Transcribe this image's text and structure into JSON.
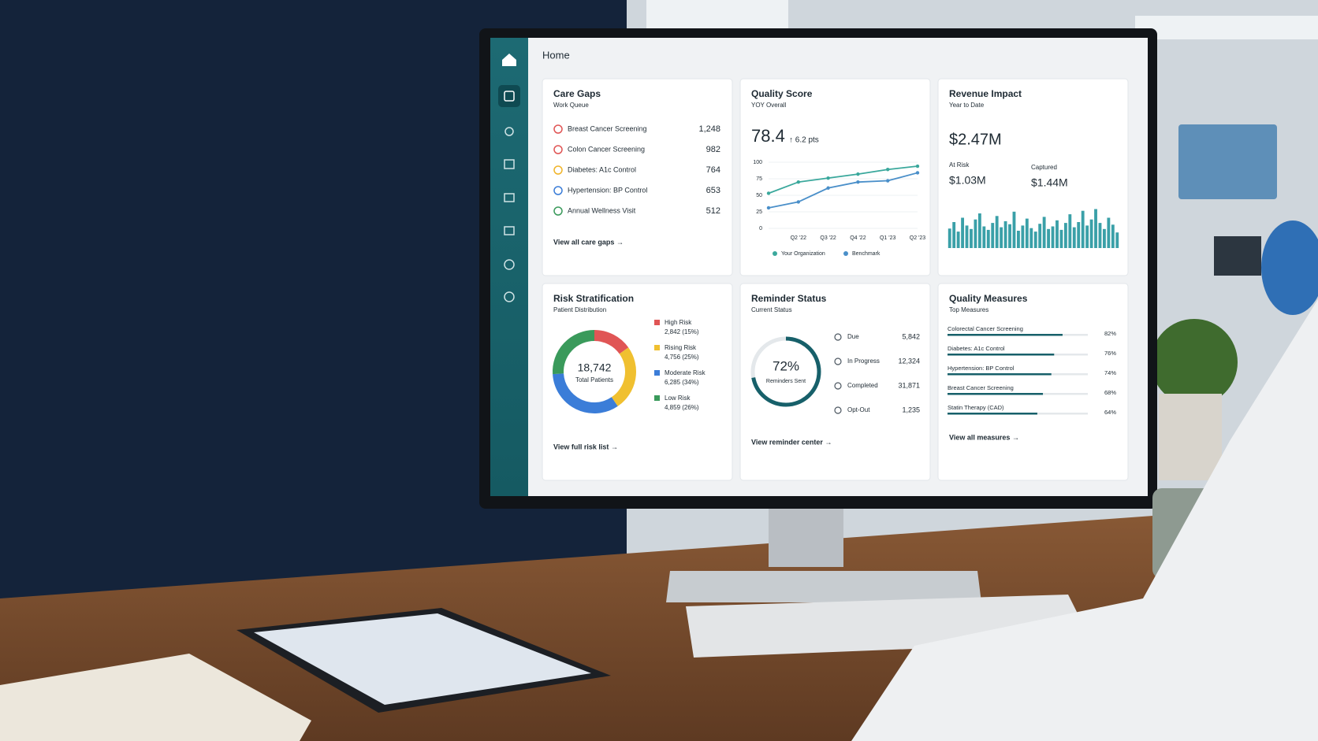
{
  "header": {
    "title": "Home"
  },
  "care_gaps": {
    "title": "Care Gaps",
    "subtitle": "Work Queue",
    "items": [
      {
        "name": "Breast Cancer Screening",
        "count": "1,248",
        "color": "#e05555"
      },
      {
        "name": "Colon Cancer Screening",
        "count": "982",
        "color": "#e05555"
      },
      {
        "name": "Diabetes: A1c Control",
        "count": "764",
        "color": "#f0b429"
      },
      {
        "name": "Hypertension: BP Control",
        "count": "653",
        "color": "#3b7dd8"
      },
      {
        "name": "Annual Wellness Visit",
        "count": "512",
        "color": "#3a9a5b"
      }
    ],
    "link": "View all care gaps →"
  },
  "quality_score": {
    "title": "Quality Score",
    "subtitle": "YOY Overall",
    "score": "78.4",
    "change": "↑ 6.2 pts",
    "chart_data": {
      "type": "line",
      "categories": [
        null,
        "Q2 '22",
        "Q3 '22",
        "Q4 '22",
        "Q1 '23",
        "Q2 '23"
      ],
      "series": [
        {
          "name": "Your Organization",
          "color": "#3aa89c",
          "values": [
            53,
            70,
            76,
            82,
            89,
            94
          ]
        },
        {
          "name": "Benchmark",
          "color": "#4a8fc9",
          "values": [
            31,
            40,
            61,
            70,
            72,
            84
          ]
        }
      ],
      "ylim": [
        0,
        100
      ],
      "yticks": [
        0,
        25,
        50,
        75,
        100
      ],
      "grid": true
    }
  },
  "revenue_impact": {
    "title": "Revenue Impact",
    "subtitle": "Year to Date",
    "total": "$2.47M",
    "at_risk": {
      "label": "At Risk",
      "value": "$1.03M"
    },
    "captured": {
      "label": "Captured",
      "value": "$1.44M"
    },
    "chart_data": {
      "type": "bar",
      "color": "#3aa0a8",
      "ylim": [
        0,
        100
      ],
      "values": [
        45,
        60,
        38,
        70,
        52,
        44,
        66,
        80,
        50,
        42,
        58,
        74,
        48,
        62,
        55,
        84,
        40,
        52,
        68,
        46,
        38,
        56,
        72,
        44,
        50,
        64,
        42,
        58,
        78,
        48,
        60,
        86,
        52,
        66,
        90,
        58,
        44,
        70,
        54,
        36
      ]
    }
  },
  "risk_stratification": {
    "title": "Risk Stratification",
    "subtitle": "Patient Distribution",
    "total": "18,742",
    "total_label": "Total Patients",
    "chart_data": {
      "type": "donut",
      "segments": [
        {
          "name": "High Risk",
          "value": 2842,
          "label": "2,842 (15%)",
          "color": "#e05555"
        },
        {
          "name": "Rising Risk",
          "value": 4756,
          "label": "4,756 (25%)",
          "color": "#f0c030"
        },
        {
          "name": "Moderate Risk",
          "value": 6285,
          "label": "6,285 (34%)",
          "color": "#3b7dd8"
        },
        {
          "name": "Low Risk",
          "value": 4859,
          "label": "4,859 (26%)",
          "color": "#3a9a5b"
        }
      ]
    },
    "link": "View full risk list →"
  },
  "reminder_status": {
    "title": "Reminder Status",
    "subtitle": "Current Status",
    "chart_data": {
      "type": "ring",
      "value": 72,
      "value_label": "72%",
      "label": "Reminders Sent",
      "color": "#17606a"
    },
    "items": [
      {
        "name": "Due",
        "count": "5,842"
      },
      {
        "name": "In Progress",
        "count": "12,324"
      },
      {
        "name": "Completed",
        "count": "31,871"
      },
      {
        "name": "Opt-Out",
        "count": "1,235"
      }
    ],
    "link": "View reminder center →"
  },
  "quality_measures": {
    "title": "Quality Measures",
    "subtitle": "Top Measures",
    "chart_data": {
      "type": "progress",
      "color": "#17606a",
      "xlim": [
        0,
        100
      ],
      "categories": [
        "Colorectal Cancer Screening",
        "Diabetes: A1c Control",
        "Hypertension: BP Control",
        "Breast Cancer Screening",
        "Statin Therapy (CAD)"
      ],
      "values": [
        82,
        76,
        74,
        68,
        64
      ],
      "value_labels": [
        "82%",
        "76%",
        "74%",
        "68%",
        "64%"
      ]
    },
    "link": "View all measures →"
  }
}
